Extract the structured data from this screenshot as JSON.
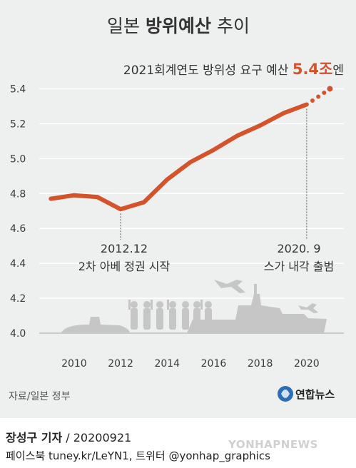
{
  "header": {
    "title_pre": "일본 ",
    "title_bold": "방위예산",
    "title_post": " 추이"
  },
  "callout": {
    "prefix": "2021회계연도 방위성 요구 예산 ",
    "value": "5.4조",
    "suffix": "엔"
  },
  "annotations": {
    "abe_date": "2012.12",
    "abe_text": "2차 아베 정권 시작",
    "suga_date": "2020. 9",
    "suga_text": "스가 내각 출범"
  },
  "source": "자료/일본 정부",
  "logo_text": "연합뉴스",
  "footer": {
    "author": "장성구 기자",
    "date": " / 20200921",
    "social": "페이스북 tuney.kr/LeYN1, 트위터 @yonhap_graphics",
    "watermark": "YONHAPNEWS"
  },
  "colors": {
    "line": "#d4532b",
    "background": "#eeefef",
    "grid": "#ffffff",
    "silhouette": "#c5c6c5"
  },
  "chart_data": {
    "type": "line",
    "title": "일본 방위예산 추이",
    "xlabel": "",
    "ylabel": "",
    "x": [
      2009,
      2010,
      2011,
      2012,
      2013,
      2014,
      2015,
      2016,
      2017,
      2018,
      2019,
      2020
    ],
    "series": [
      {
        "values": [
          4.77,
          4.79,
          4.78,
          4.71,
          4.75,
          4.88,
          4.98,
          5.05,
          5.13,
          5.19,
          5.26,
          5.31
        ]
      }
    ],
    "projection": {
      "x": [
        2020,
        2021
      ],
      "values": [
        5.31,
        5.4
      ]
    },
    "ylim": [
      4.0,
      5.5
    ],
    "xlim": [
      2008.5,
      2021.6
    ],
    "yticks": [
      4.0,
      4.2,
      4.4,
      4.6,
      4.8,
      5.0,
      5.2,
      5.4
    ],
    "ytick_labels": [
      "4.0",
      "4.2",
      "4.4",
      "4.6",
      "4.8",
      "5.0",
      "5.2",
      "5.4"
    ],
    "xticks": [
      2010,
      2012,
      2014,
      2016,
      2018,
      2020
    ],
    "xtick_labels": [
      "2010",
      "2012",
      "2014",
      "2016",
      "2018",
      "2020"
    ],
    "grid": true,
    "legend": "none"
  }
}
